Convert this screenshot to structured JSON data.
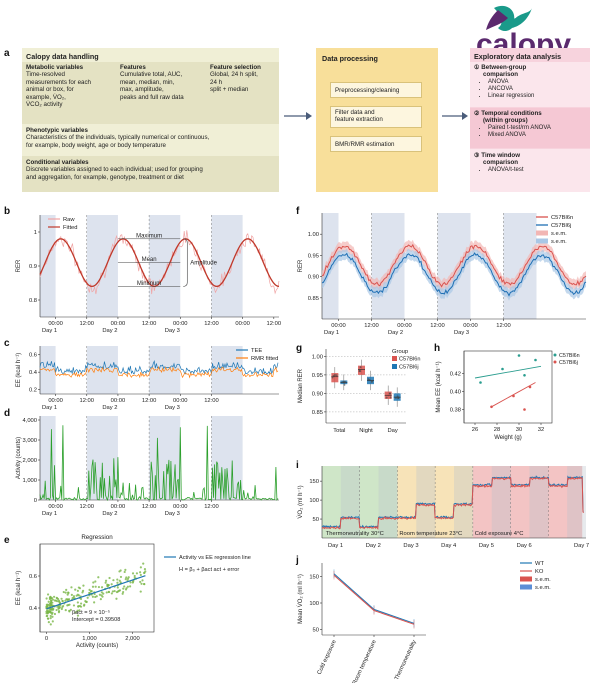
{
  "logo": {
    "text": "calopy"
  },
  "panel_a": {
    "letter": "a",
    "handling": {
      "title": "Calopy data handling",
      "metabolic": {
        "title": "Metabolic variables",
        "text_lines": [
          "Time-resolved",
          "measurements for each",
          "animal or box, for",
          "example, V̇O₂,",
          "V̇CO₂ activity"
        ]
      },
      "features": {
        "title": "Features",
        "text_lines": [
          "Cumulative total, AUC,",
          "mean, median, min,",
          "max, amplitude,",
          "peaks and full raw data"
        ]
      },
      "selection": {
        "title": "Feature selection",
        "text_lines": [
          "Global, 24 h split,",
          "24 h",
          "split + median"
        ]
      },
      "phenotypic": {
        "title": "Phenotypic variables",
        "text_lines": [
          "Characteristics of the individuals, typically numerical or continuous,",
          "for example, body weight, age or body temperature"
        ]
      },
      "conditional": {
        "title": "Conditional variables",
        "text_lines": [
          "Discrete variables assigned to each individual; used for grouping",
          "and aggregation, for example, genotype, treatment or diet"
        ]
      }
    },
    "processing": {
      "title": "Data processing",
      "steps": [
        "Preprocessing/cleaning",
        "Filter data and feature extraction",
        "BMR/RMR estimation"
      ],
      "step2_lines": [
        "Filter data and",
        "feature extraction"
      ]
    },
    "exploratory": {
      "title": "Exploratory data analysis",
      "sections": [
        {
          "num": "①",
          "title_lines": [
            "Between-group",
            "comparison"
          ],
          "items": [
            "ANOVA",
            "ANCOVA",
            "Linear regression"
          ]
        },
        {
          "num": "②",
          "title_lines": [
            "Temporal conditions",
            "(within groups)"
          ],
          "items": [
            "Paired t-test/rm ANOVA",
            "Mixed ANOVA"
          ]
        },
        {
          "num": "③",
          "title_lines": [
            "Time window",
            "comparison"
          ],
          "items": [
            "ANOVA/t-test"
          ]
        }
      ]
    }
  },
  "chart_data": [
    {
      "id": "b",
      "type": "line",
      "ylabel": "RER",
      "yticks": [
        0.8,
        0.9,
        1.0
      ],
      "ylim": [
        0.75,
        1.05
      ],
      "xticks": [
        "00:00",
        "12:00",
        "00:00",
        "12:00",
        "00:00",
        "12:00",
        "00:00",
        "12:00"
      ],
      "days": [
        "Day 1",
        "Day 2",
        "Day 3"
      ],
      "legend": [
        "Raw",
        "Fitted"
      ],
      "annotations": [
        "Maximum",
        "Mean",
        "Minimum",
        "Amplitude"
      ],
      "fitted": {
        "mean": 0.91,
        "amplitude": 0.07,
        "period_h": 24,
        "peak_h": 32
      },
      "colors": {
        "raw": "#f0a4a4",
        "fitted": "#c0392b",
        "shade": "#dde3ee"
      }
    },
    {
      "id": "c",
      "type": "line",
      "ylabel": "EE (kcal h⁻¹)",
      "yticks": [
        0.2,
        0.4,
        0.6
      ],
      "ylim": [
        0.15,
        0.7
      ],
      "xticks": [
        "00:00",
        "12:00",
        "00:00",
        "12:00",
        "00:00",
        "12:00"
      ],
      "days": [
        "Day 1",
        "Day 2",
        "Day 3"
      ],
      "series": [
        {
          "name": "TEE",
          "color": "#1f77b4"
        },
        {
          "name": "RMR fitted",
          "color": "#ff7f0e"
        }
      ]
    },
    {
      "id": "d",
      "type": "line",
      "ylabel": "Activity (counts)",
      "yticks": [
        0,
        1000,
        2000,
        3000,
        4000
      ],
      "ylim": [
        0,
        4200
      ],
      "xticks": [
        "00:00",
        "12:00",
        "00:00",
        "12:00",
        "00:00",
        "12:00"
      ],
      "days": [
        "Day 1",
        "Day 2",
        "Day 3"
      ],
      "color": "#2ca02c"
    },
    {
      "id": "e",
      "type": "scatter",
      "title": "Regression",
      "ylabel": "EE (kcal h⁻¹)",
      "xlabel": "Activity (counts)",
      "xticks": [
        "0",
        "1,000",
        "2,000"
      ],
      "xlim": [
        -150,
        2500
      ],
      "yticks": [
        0.4,
        0.6
      ],
      "ylim": [
        0.25,
        0.8
      ],
      "regression": {
        "slope": 9e-05,
        "intercept": 0.39508
      },
      "legend": [
        "Activity vs EE regression line"
      ],
      "equation": "H = β₀ + βact act + error",
      "beta_text": "βact = 9 × 10⁻⁵",
      "intercept_text": "Intercept = 0.39508",
      "colors": {
        "points": "#7ab648",
        "line": "#1f77b4"
      }
    },
    {
      "id": "f",
      "type": "line",
      "ylabel": "RER",
      "yticks": [
        0.85,
        0.9,
        0.95,
        1.0
      ],
      "ylim": [
        0.8,
        1.05
      ],
      "xticks": [
        "00:00",
        "12:00",
        "00:00",
        "12:00",
        "00:00",
        "12:00"
      ],
      "days": [
        "Day 1",
        "Day 2",
        "Day 3"
      ],
      "series": [
        {
          "name": "C57Bl6n",
          "color": "#d9534f"
        },
        {
          "name": "C57Bl6j",
          "color": "#1f6fb4"
        },
        {
          "name": "s.e.m.",
          "color": "#f2b6b4"
        },
        {
          "name": "s.e.m.",
          "color": "#a9c7e6"
        }
      ]
    },
    {
      "id": "g",
      "type": "bar",
      "ylabel": "Median RER",
      "categories": [
        "Total",
        "Night",
        "Day"
      ],
      "yticks": [
        0.85,
        0.9,
        0.95,
        1.0
      ],
      "ylim": [
        0.82,
        1.02
      ],
      "legend_title": "Group",
      "series": [
        {
          "name": "C57Bl6n",
          "color": "#d9534f",
          "medians": [
            0.945,
            0.965,
            0.895
          ],
          "q1": [
            0.93,
            0.95,
            0.885
          ],
          "q3": [
            0.955,
            0.975,
            0.905
          ]
        },
        {
          "name": "C57Bl6j",
          "color": "#1f77b4",
          "medians": [
            0.93,
            0.935,
            0.89
          ],
          "q1": [
            0.925,
            0.925,
            0.88
          ],
          "q3": [
            0.935,
            0.945,
            0.9
          ]
        }
      ]
    },
    {
      "id": "h",
      "type": "scatter",
      "ylabel": "Mean EE (kcal h⁻¹)",
      "xlabel": "Weight (g)",
      "xticks": [
        26,
        28,
        30,
        32
      ],
      "xlim": [
        25,
        33
      ],
      "yticks": [
        0.38,
        0.4,
        0.42
      ],
      "ylim": [
        0.365,
        0.445
      ],
      "series": [
        {
          "name": "C57Bl6n",
          "color": "#2a9d8f",
          "points": [
            [
              26.5,
              0.41
            ],
            [
              28.5,
              0.425
            ],
            [
              30,
              0.44
            ],
            [
              30.5,
              0.418
            ],
            [
              31.5,
              0.435
            ]
          ],
          "fit": [
            [
              26,
              0.415
            ],
            [
              32,
              0.428
            ]
          ]
        },
        {
          "name": "C57Bl6j",
          "color": "#d9534f",
          "points": [
            [
              27.5,
              0.383
            ],
            [
              29.5,
              0.395
            ],
            [
              30.5,
              0.38
            ],
            [
              31,
              0.405
            ]
          ],
          "fit": [
            [
              27.5,
              0.383
            ],
            [
              31.5,
              0.41
            ]
          ]
        }
      ]
    },
    {
      "id": "i",
      "type": "line",
      "ylabel": "V̇O₂ (ml h⁻¹)",
      "yticks": [
        50,
        100,
        150
      ],
      "ylim": [
        0,
        190
      ],
      "days": [
        "Day 1",
        "Day 2",
        "Day 3",
        "Day 4",
        "Day 5",
        "Day 6",
        "Day 7"
      ],
      "conditions": [
        "Thermoneutrality 30°C",
        "Room temperature 23°C",
        "Cold exposure 4°C"
      ],
      "condition_colors": [
        "#cfe6c8",
        "#f7e3b8",
        "#f3c4c4"
      ],
      "series": [
        {
          "name": "WT",
          "color": "#1f77b4"
        },
        {
          "name": "KO",
          "color": "#d9534f"
        }
      ],
      "levels": {
        "thermo": [
          30,
          55
        ],
        "room": [
          55,
          90
        ],
        "cold": [
          140,
          160
        ]
      }
    },
    {
      "id": "j",
      "type": "line",
      "ylabel": "Mean V̇O₂ (ml h⁻¹)",
      "categories": [
        "Cold exposure",
        "Room temperature",
        "Thermoneutrality"
      ],
      "yticks": [
        50,
        100,
        150
      ],
      "ylim": [
        40,
        175
      ],
      "series": [
        {
          "name": "WT",
          "color": "#1f77b4",
          "values": [
            155,
            88,
            62
          ]
        },
        {
          "name": "KO",
          "color": "#d9534f",
          "values": [
            152,
            86,
            60
          ]
        }
      ],
      "legend": [
        "WT",
        "KO",
        "s.e.m.",
        "s.e.m."
      ]
    }
  ]
}
